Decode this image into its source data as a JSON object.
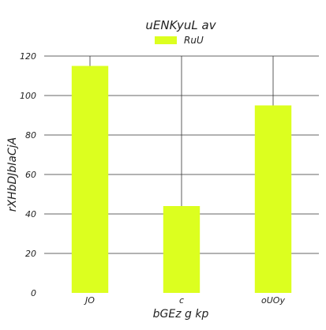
{
  "chart_data": {
    "type": "bar",
    "title": "uENKyuL av",
    "xlabel": "bGEz g kp",
    "ylabel": "rXHbDJbIaCjA",
    "categories": [
      "JO",
      "c",
      "oUOy"
    ],
    "series": [
      {
        "name": "RuU",
        "values": [
          115,
          44,
          95
        ],
        "color": "#dcff1f"
      }
    ],
    "ylim": [
      0,
      120
    ],
    "yticks": [
      0,
      20,
      40,
      60,
      80,
      100,
      120
    ],
    "grid": true,
    "legend": "top-center"
  }
}
